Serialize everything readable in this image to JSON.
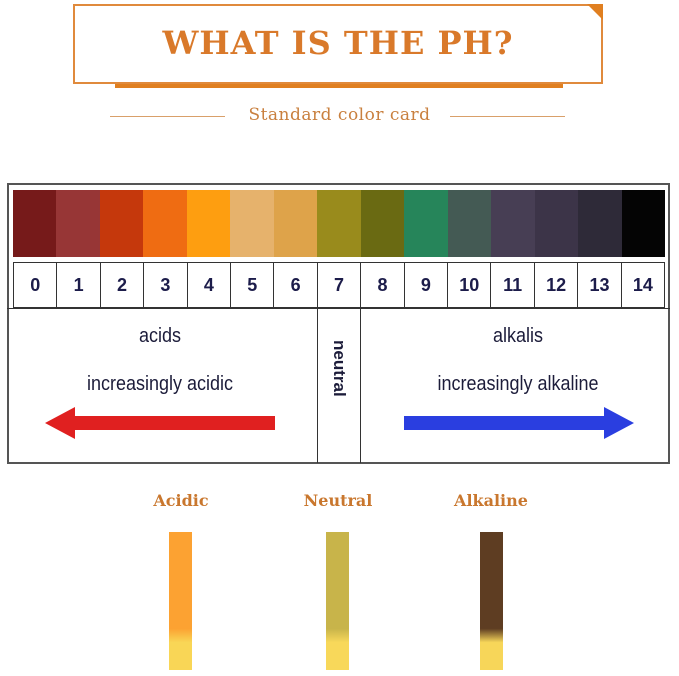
{
  "header": {
    "title": "WHAT IS THE PH?",
    "subtitle": "Standard color card"
  },
  "scale": {
    "colors": [
      "#761a1a",
      "#973636",
      "#c5380c",
      "#ef6c12",
      "#fe9e10",
      "#e6b26c",
      "#dea34a",
      "#998b1c",
      "#6a6a12",
      "#26855a",
      "#445a54",
      "#473e54",
      "#3c3448",
      "#2e2a38",
      "#040404"
    ],
    "numbers": [
      "0",
      "1",
      "2",
      "3",
      "4",
      "5",
      "6",
      "7",
      "8",
      "9",
      "10",
      "11",
      "12",
      "13",
      "14"
    ]
  },
  "sections": {
    "acids": "acids",
    "acids_desc": "increasingly acidic",
    "neutral": "neutral",
    "alkalis": "alkalis",
    "alkalis_desc": "increasingly alkaline",
    "acid_arrow_color": "#e02020",
    "alkali_arrow_color": "#2a3ee0"
  },
  "strips": [
    {
      "label": "Acidic",
      "top_color": "#fca232",
      "bottom_color": "#f9d656"
    },
    {
      "label": "Neutral",
      "top_color": "#c8b44a",
      "bottom_color": "#f8d85a"
    },
    {
      "label": "Alkaline",
      "top_color": "#5e3d22",
      "bottom_color": "#f7d659"
    }
  ]
}
